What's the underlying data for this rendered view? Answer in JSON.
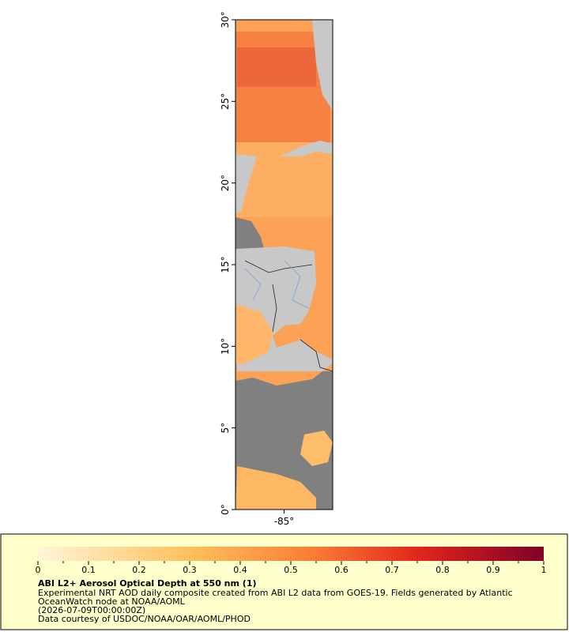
{
  "map": {
    "xlim": [
      -88,
      -82
    ],
    "ylim": [
      0,
      30
    ],
    "xticks": [
      {
        "value": -85,
        "label": "-85°"
      }
    ],
    "yticks": [
      {
        "value": 0,
        "label": "0°"
      },
      {
        "value": 5,
        "label": "5°"
      },
      {
        "value": 10,
        "label": "10°"
      },
      {
        "value": 15,
        "label": "15°"
      },
      {
        "value": 20,
        "label": "20°"
      },
      {
        "value": 25,
        "label": "25°"
      },
      {
        "value": 30,
        "label": "30°"
      }
    ]
  },
  "colorbar": {
    "lim": [
      0,
      1
    ],
    "ticks": [
      0,
      0.1,
      0.2,
      0.3,
      0.4,
      0.5,
      0.6,
      0.7,
      0.8,
      0.9,
      1
    ]
  },
  "legend": {
    "title": "ABI L2+ Aerosol Optical Depth at 550 nm (1)",
    "lines": [
      "Experimental NRT AOD daily composite created from ABI L2 data from GOES-19. Fields generated by Atlantic",
      "OceanWatch node at NOAA/AOML",
      "(2026-07-09T00:00:00Z)",
      "Data courtesy of USDOC/NOAA/OAR/AOML/PHOD"
    ]
  }
}
